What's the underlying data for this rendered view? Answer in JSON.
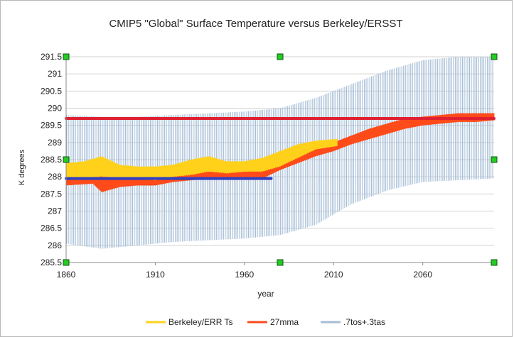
{
  "chart_data": {
    "type": "line",
    "title": "CMIP5 \"Global\" Surface Temperature versus Berkeley/ERSST",
    "xlabel": "year",
    "ylabel": "K degrees",
    "xlim": [
      1860,
      2100
    ],
    "ylim": [
      285.5,
      291.5
    ],
    "x_ticks": [
      1860,
      1910,
      1960,
      2010,
      2060
    ],
    "y_ticks": [
      285.5,
      286,
      286.5,
      287,
      287.5,
      288,
      288.5,
      289,
      289.5,
      290,
      290.5,
      291,
      291.5
    ],
    "grid": "horizontal",
    "legend_position": "bottom",
    "series": [
      {
        "name": "Berkeley/ERR Ts",
        "color": "#ffd11a",
        "x": [
          1860,
          1870,
          1880,
          1890,
          1900,
          1910,
          1920,
          1930,
          1940,
          1950,
          1960,
          1970,
          1980,
          1990,
          2000,
          2012
        ],
        "low": [
          287.95,
          287.95,
          288.0,
          287.95,
          287.95,
          287.9,
          288.0,
          288.05,
          288.15,
          288.1,
          288.15,
          288.15,
          288.3,
          288.55,
          288.8,
          288.9
        ],
        "high": [
          288.4,
          288.45,
          288.6,
          288.35,
          288.3,
          288.3,
          288.35,
          288.5,
          288.6,
          288.45,
          288.45,
          288.55,
          288.75,
          288.95,
          289.05,
          289.1
        ]
      },
      {
        "name": "27mma",
        "color": "#ff4a1a",
        "x": [
          1860,
          1875,
          1880,
          1890,
          1900,
          1910,
          1920,
          1930,
          1940,
          1950,
          1960,
          1970,
          1980,
          1990,
          2000,
          2010,
          2020,
          2030,
          2040,
          2050,
          2060,
          2070,
          2080,
          2090,
          2100
        ],
        "low": [
          287.75,
          287.8,
          287.55,
          287.7,
          287.75,
          287.75,
          287.85,
          287.9,
          287.95,
          287.95,
          287.95,
          287.95,
          288.2,
          288.4,
          288.6,
          288.75,
          288.95,
          289.1,
          289.25,
          289.4,
          289.5,
          289.55,
          289.6,
          289.6,
          289.65
        ],
        "high": [
          288.05,
          288.05,
          288.05,
          288.0,
          287.95,
          287.95,
          288.05,
          288.1,
          288.15,
          288.15,
          288.15,
          288.2,
          288.4,
          288.65,
          288.85,
          289.0,
          289.2,
          289.4,
          289.55,
          289.7,
          289.75,
          289.8,
          289.85,
          289.85,
          289.85
        ]
      },
      {
        "name": ".7tos+.3tas",
        "color": "#a5bdd6",
        "x": [
          1860,
          1880,
          1900,
          1920,
          1940,
          1960,
          1980,
          2000,
          2020,
          2040,
          2060,
          2080,
          2100
        ],
        "low": [
          286.05,
          285.9,
          286.0,
          286.1,
          286.15,
          286.2,
          286.3,
          286.6,
          287.2,
          287.6,
          287.85,
          287.9,
          287.95
        ],
        "high": [
          289.8,
          289.75,
          289.75,
          289.8,
          289.85,
          289.9,
          290.0,
          290.3,
          290.7,
          291.1,
          291.4,
          291.5,
          291.5
        ]
      }
    ],
    "reference_lines": [
      {
        "color": "#e02030",
        "y": 289.7,
        "x": [
          1860,
          2100
        ]
      },
      {
        "color": "#3040c0",
        "y": 287.95,
        "x": [
          1860,
          1975
        ]
      }
    ]
  }
}
